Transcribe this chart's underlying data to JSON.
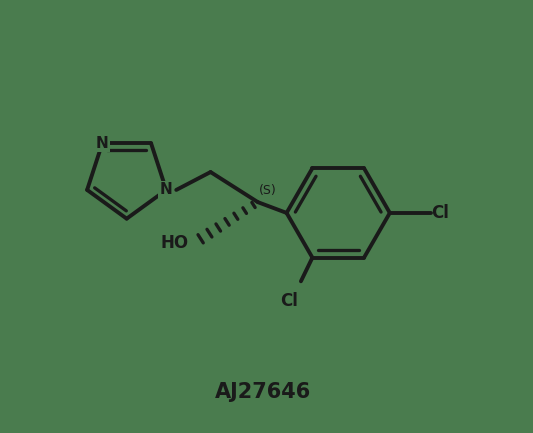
{
  "bg_color": "#4a7c4e",
  "line_color": "#1a1a1a",
  "line_width": 2.8,
  "label": "AJ27646",
  "label_fontsize": 15,
  "label_fontweight": "bold",
  "figsize": [
    5.33,
    4.33
  ],
  "dpi": 100,
  "xlim": [
    0,
    7
  ],
  "ylim": [
    0,
    6
  ]
}
